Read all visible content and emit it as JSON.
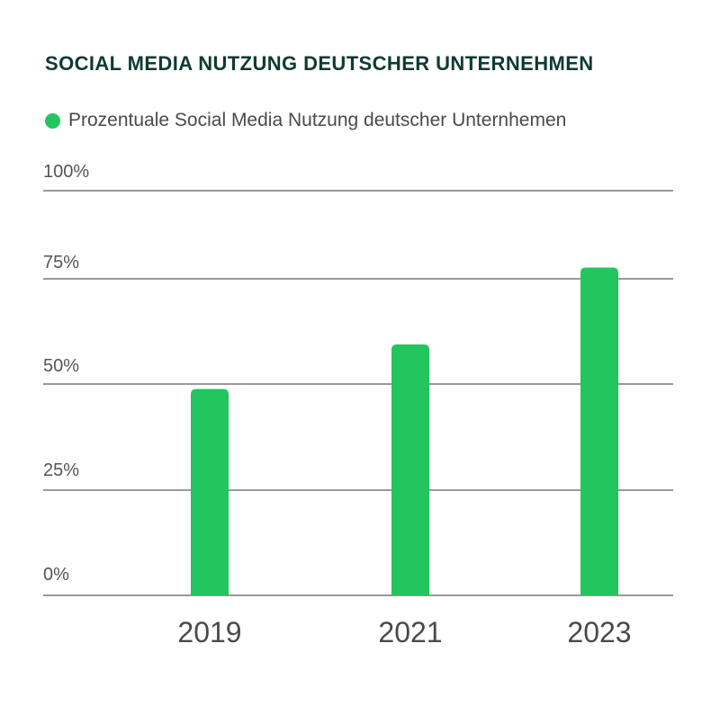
{
  "colors": {
    "bar": "#22c55e",
    "title": "#0e3a33",
    "gridline": "#333333",
    "text": "#555555"
  },
  "chart_data": {
    "type": "bar",
    "title": "SOCIAL MEDIA NUTZUNG DEUTSCHER UNTERNEHMEN",
    "xlabel": "",
    "ylabel": "",
    "categories": [
      "2019",
      "2021",
      "2023"
    ],
    "series": [
      {
        "name": "Prozentuale Social Media Nutzung deutscher Unternhemen",
        "values": [
          51,
          62,
          81
        ]
      }
    ],
    "y_ticks": [
      {
        "value": 0,
        "label": "0%"
      },
      {
        "value": 25,
        "label": "25%"
      },
      {
        "value": 50,
        "label": "50%"
      },
      {
        "value": 75,
        "label": "75%"
      },
      {
        "value": 100,
        "label": "100%"
      }
    ],
    "ylim": [
      0,
      100
    ],
    "grid": true,
    "legend_position": "top-left"
  }
}
